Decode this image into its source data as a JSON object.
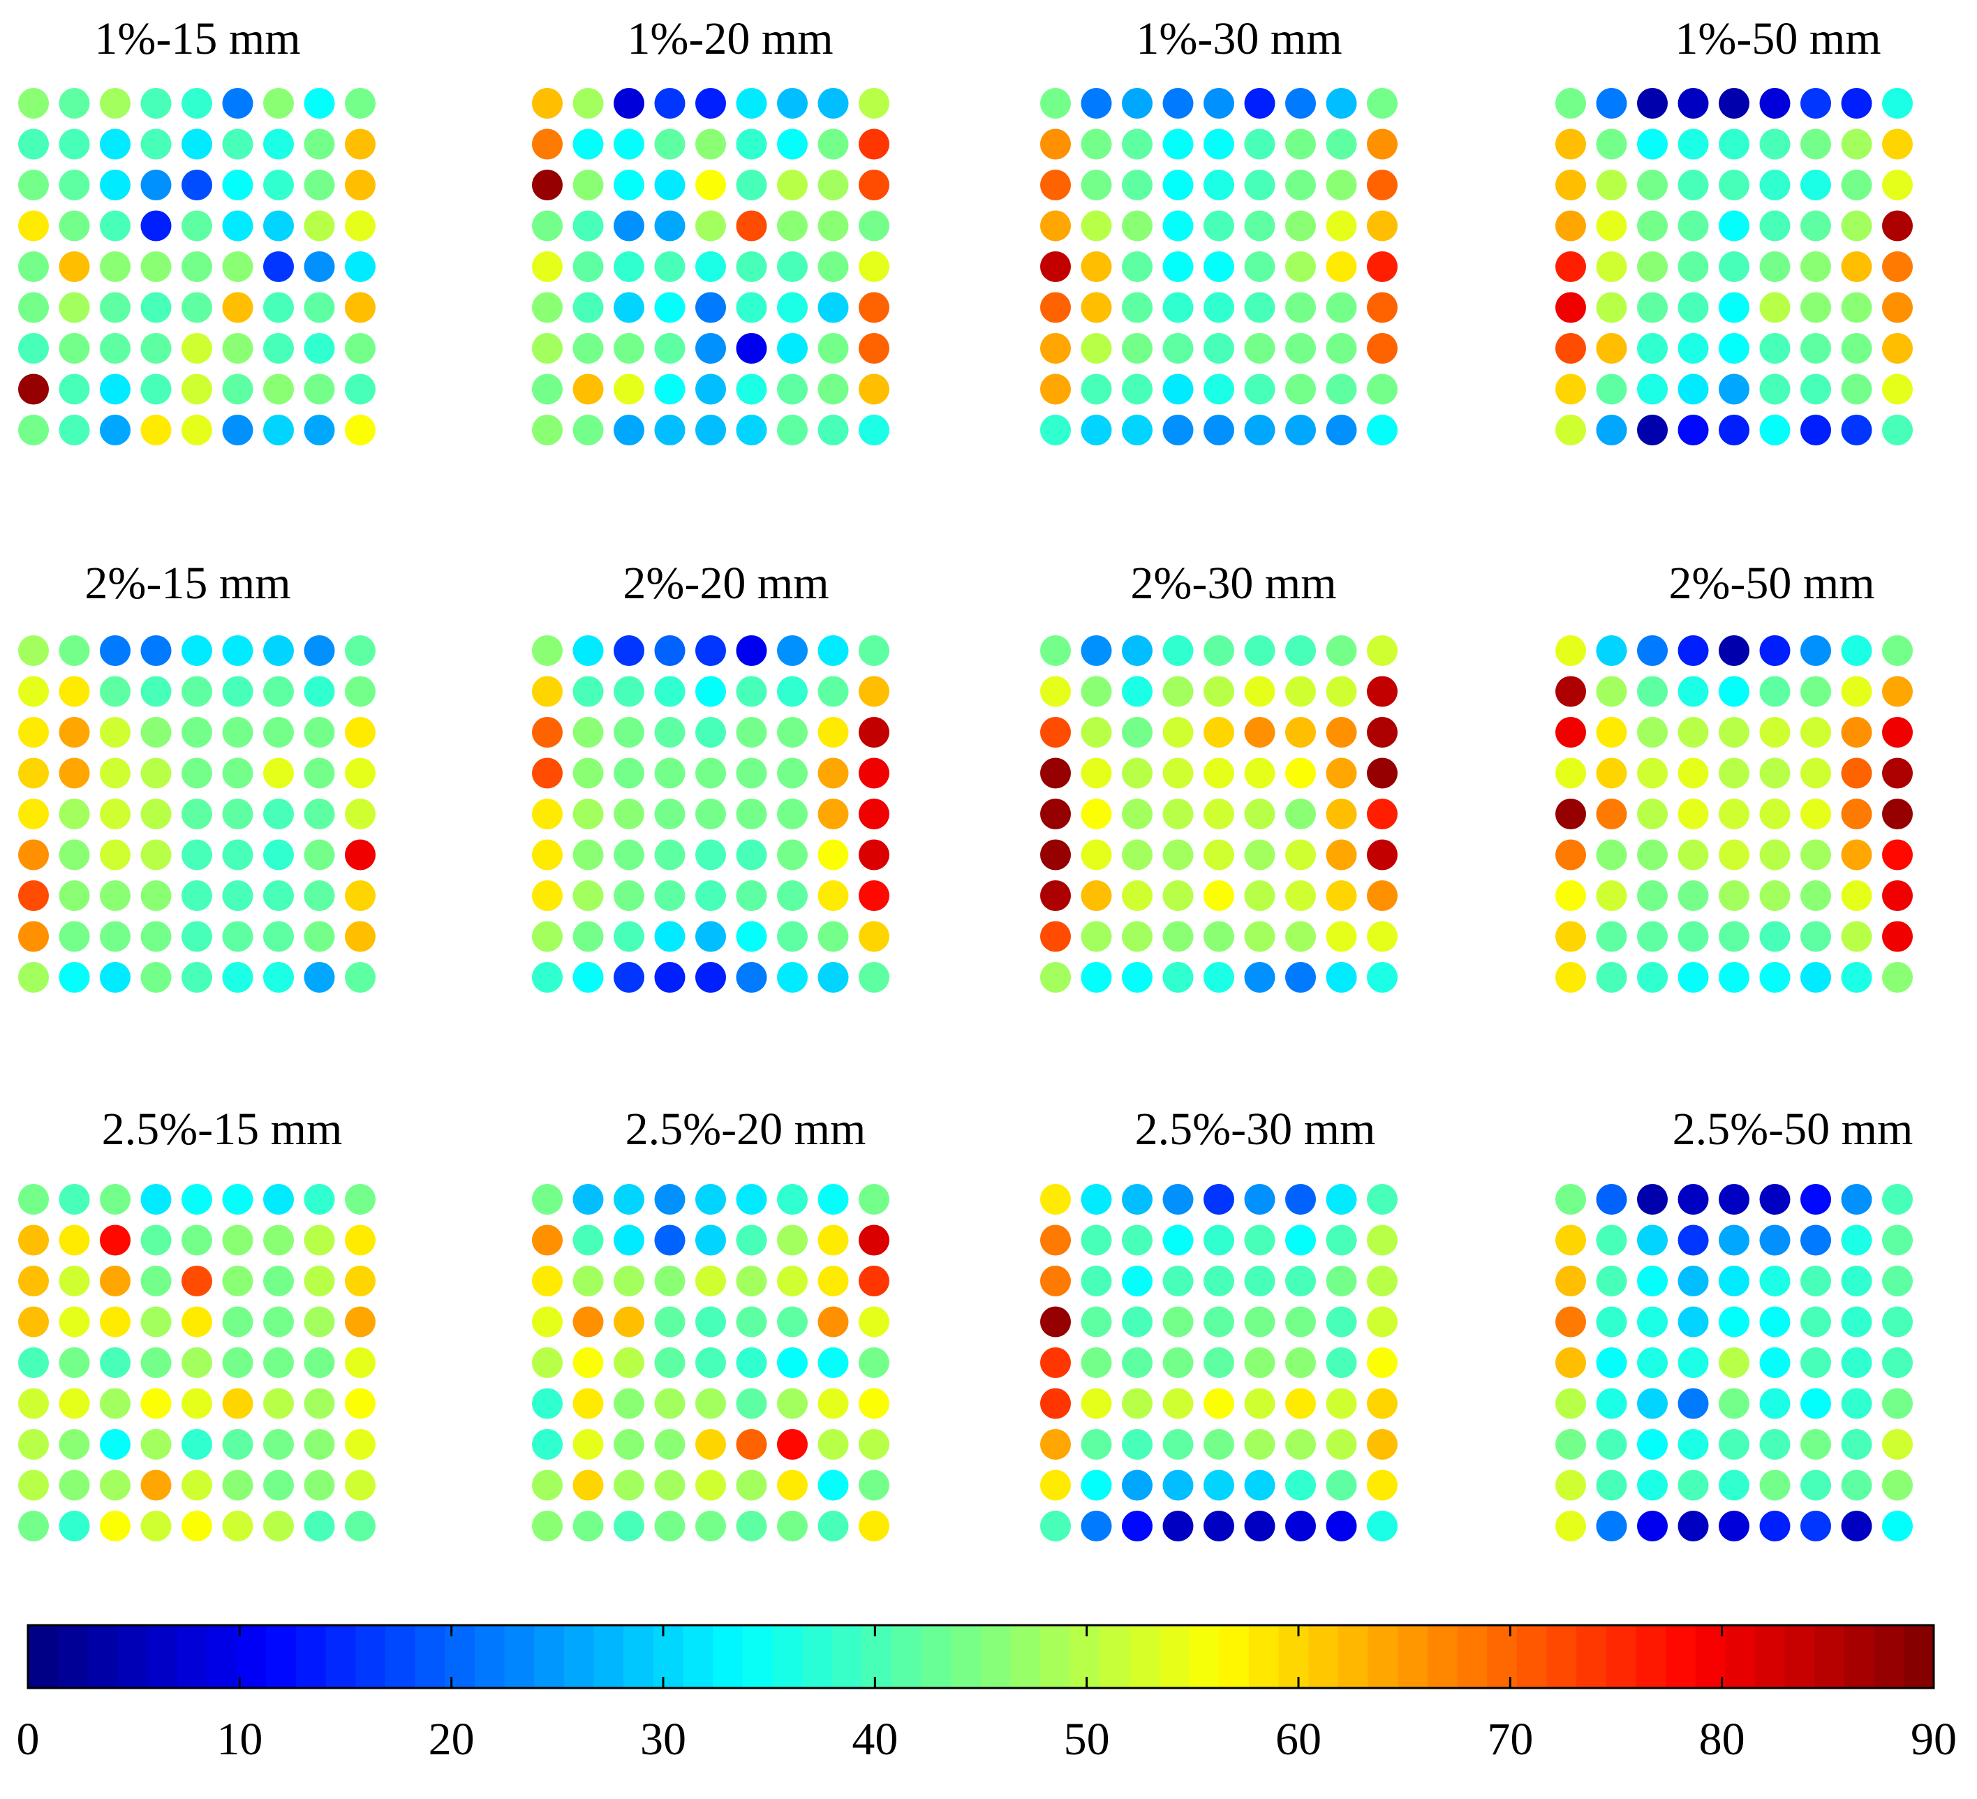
{
  "chart_data": {
    "type": "heatmap",
    "colormap": "jet",
    "colorbar": {
      "min": 0,
      "max": 90,
      "ticks": [
        "0",
        "10",
        "20",
        "30",
        "40",
        "50",
        "60",
        "70",
        "80",
        "90"
      ],
      "placement": "bottom"
    },
    "grid": "9x9 circles per panel",
    "panels": [
      {
        "title": "1%-15 mm",
        "values": [
          [
            46,
            42,
            48,
            40,
            38,
            22,
            46,
            34,
            44
          ],
          [
            40,
            40,
            32,
            40,
            32,
            40,
            36,
            44,
            62
          ],
          [
            44,
            42,
            32,
            24,
            18,
            34,
            38,
            44,
            62
          ],
          [
            58,
            44,
            40,
            14,
            42,
            32,
            30,
            50,
            54
          ],
          [
            44,
            62,
            46,
            46,
            44,
            46,
            16,
            24,
            32
          ],
          [
            44,
            48,
            42,
            40,
            42,
            62,
            40,
            42,
            62
          ],
          [
            40,
            44,
            42,
            42,
            52,
            46,
            40,
            38,
            44
          ],
          [
            88,
            40,
            32,
            40,
            52,
            42,
            46,
            44,
            40
          ],
          [
            44,
            40,
            26,
            58,
            54,
            24,
            30,
            26,
            56
          ]
        ]
      },
      {
        "title": "1%-20 mm",
        "values": [
          [
            62,
            48,
            8,
            16,
            14,
            32,
            28,
            28,
            50
          ],
          [
            68,
            34,
            34,
            42,
            46,
            38,
            34,
            44,
            74
          ],
          [
            88,
            46,
            34,
            32,
            56,
            40,
            50,
            48,
            72
          ],
          [
            44,
            40,
            24,
            26,
            48,
            72,
            46,
            46,
            44
          ],
          [
            54,
            42,
            38,
            40,
            36,
            40,
            40,
            44,
            54
          ],
          [
            46,
            40,
            30,
            34,
            22,
            38,
            36,
            30,
            70
          ],
          [
            48,
            44,
            44,
            42,
            24,
            10,
            32,
            44,
            70
          ],
          [
            44,
            62,
            54,
            34,
            28,
            36,
            42,
            44,
            62
          ],
          [
            46,
            44,
            26,
            28,
            28,
            30,
            42,
            40,
            36
          ]
        ]
      },
      {
        "title": "1%-30 mm",
        "values": [
          [
            44,
            22,
            26,
            22,
            24,
            14,
            22,
            28,
            44
          ],
          [
            66,
            44,
            42,
            34,
            34,
            40,
            44,
            42,
            66
          ],
          [
            70,
            44,
            42,
            34,
            36,
            40,
            44,
            46,
            70
          ],
          [
            64,
            50,
            46,
            34,
            40,
            42,
            46,
            54,
            62
          ],
          [
            84,
            62,
            42,
            34,
            34,
            42,
            48,
            58,
            76
          ],
          [
            70,
            62,
            42,
            38,
            38,
            40,
            44,
            44,
            70
          ],
          [
            64,
            50,
            44,
            42,
            40,
            44,
            44,
            44,
            70
          ],
          [
            64,
            40,
            40,
            32,
            36,
            40,
            44,
            42,
            44
          ],
          [
            38,
            30,
            30,
            24,
            24,
            26,
            26,
            24,
            34
          ]
        ]
      },
      {
        "title": "1%-50 mm",
        "values": [
          [
            44,
            22,
            4,
            6,
            4,
            8,
            16,
            14,
            36
          ],
          [
            62,
            44,
            34,
            36,
            38,
            40,
            44,
            48,
            60
          ],
          [
            62,
            50,
            44,
            40,
            40,
            38,
            36,
            44,
            54
          ],
          [
            64,
            54,
            44,
            42,
            34,
            40,
            42,
            48,
            86
          ],
          [
            76,
            52,
            46,
            42,
            40,
            44,
            46,
            62,
            68
          ],
          [
            80,
            50,
            42,
            40,
            34,
            50,
            46,
            46,
            66
          ],
          [
            72,
            62,
            38,
            36,
            34,
            40,
            42,
            44,
            62
          ],
          [
            60,
            42,
            36,
            32,
            26,
            40,
            40,
            44,
            54
          ],
          [
            52,
            26,
            4,
            12,
            14,
            34,
            14,
            16,
            40
          ]
        ]
      },
      {
        "title": "2%-15 mm",
        "values": [
          [
            48,
            44,
            22,
            22,
            32,
            32,
            30,
            24,
            42
          ],
          [
            54,
            58,
            42,
            40,
            42,
            40,
            42,
            38,
            44
          ],
          [
            58,
            64,
            52,
            46,
            44,
            44,
            44,
            44,
            58
          ],
          [
            60,
            64,
            52,
            50,
            44,
            44,
            54,
            44,
            54
          ],
          [
            58,
            48,
            52,
            50,
            42,
            42,
            40,
            42,
            52
          ],
          [
            66,
            46,
            52,
            50,
            40,
            40,
            38,
            44,
            80
          ],
          [
            72,
            46,
            46,
            46,
            40,
            40,
            40,
            42,
            60
          ],
          [
            66,
            44,
            44,
            44,
            40,
            42,
            42,
            44,
            62
          ],
          [
            48,
            34,
            32,
            44,
            40,
            36,
            36,
            26,
            42
          ]
        ]
      },
      {
        "title": "2%-20 mm",
        "values": [
          [
            46,
            32,
            16,
            20,
            16,
            10,
            24,
            32,
            42
          ],
          [
            60,
            40,
            40,
            38,
            34,
            40,
            38,
            42,
            62
          ],
          [
            70,
            46,
            44,
            42,
            40,
            44,
            44,
            58,
            84
          ],
          [
            72,
            46,
            44,
            44,
            44,
            44,
            44,
            64,
            80
          ],
          [
            58,
            48,
            46,
            44,
            44,
            44,
            44,
            64,
            80
          ],
          [
            58,
            46,
            44,
            42,
            40,
            40,
            44,
            56,
            82
          ],
          [
            58,
            48,
            44,
            42,
            40,
            42,
            42,
            58,
            78
          ],
          [
            48,
            44,
            40,
            32,
            28,
            34,
            42,
            44,
            60
          ],
          [
            38,
            34,
            16,
            14,
            14,
            22,
            32,
            30,
            42
          ]
        ]
      },
      {
        "title": "2%-30 mm",
        "values": [
          [
            44,
            24,
            28,
            38,
            42,
            40,
            40,
            44,
            52
          ],
          [
            54,
            46,
            36,
            48,
            50,
            54,
            52,
            52,
            84
          ],
          [
            72,
            50,
            44,
            52,
            60,
            66,
            62,
            66,
            86
          ],
          [
            88,
            54,
            50,
            52,
            54,
            54,
            56,
            64,
            88
          ],
          [
            88,
            56,
            48,
            50,
            52,
            50,
            46,
            62,
            76
          ],
          [
            88,
            54,
            48,
            48,
            52,
            48,
            52,
            64,
            84
          ],
          [
            86,
            62,
            52,
            50,
            56,
            50,
            52,
            60,
            66
          ],
          [
            72,
            48,
            48,
            46,
            46,
            48,
            48,
            54,
            54
          ],
          [
            48,
            34,
            34,
            38,
            36,
            24,
            22,
            32,
            36
          ]
        ]
      },
      {
        "title": "2%-50 mm",
        "values": [
          [
            54,
            30,
            22,
            14,
            4,
            14,
            24,
            36,
            44
          ],
          [
            86,
            48,
            42,
            36,
            34,
            42,
            44,
            54,
            64
          ],
          [
            80,
            58,
            48,
            50,
            50,
            52,
            52,
            66,
            80
          ],
          [
            54,
            60,
            52,
            54,
            50,
            50,
            52,
            70,
            86
          ],
          [
            88,
            68,
            50,
            54,
            52,
            52,
            54,
            68,
            88
          ],
          [
            68,
            46,
            46,
            50,
            52,
            50,
            48,
            64,
            78
          ],
          [
            56,
            52,
            44,
            44,
            48,
            48,
            46,
            54,
            80
          ],
          [
            60,
            42,
            42,
            42,
            42,
            40,
            42,
            50,
            80
          ],
          [
            58,
            40,
            38,
            34,
            34,
            34,
            32,
            36,
            46
          ]
        ]
      },
      {
        "title": "2.5%-15 mm",
        "values": [
          [
            44,
            40,
            44,
            32,
            34,
            34,
            32,
            38,
            44
          ],
          [
            62,
            58,
            78,
            42,
            44,
            46,
            46,
            50,
            58
          ],
          [
            62,
            52,
            64,
            44,
            72,
            46,
            44,
            50,
            60
          ],
          [
            62,
            54,
            58,
            48,
            58,
            44,
            44,
            48,
            64
          ],
          [
            40,
            44,
            40,
            44,
            48,
            44,
            44,
            44,
            54
          ],
          [
            52,
            54,
            48,
            56,
            54,
            60,
            50,
            48,
            56
          ],
          [
            50,
            46,
            34,
            48,
            38,
            42,
            44,
            46,
            54
          ],
          [
            50,
            46,
            48,
            64,
            52,
            46,
            44,
            46,
            52
          ],
          [
            44,
            38,
            56,
            52,
            56,
            52,
            50,
            40,
            42
          ]
        ]
      },
      {
        "title": "2.5%-20 mm",
        "values": [
          [
            44,
            28,
            30,
            24,
            30,
            32,
            38,
            34,
            44
          ],
          [
            66,
            40,
            32,
            20,
            30,
            40,
            48,
            58,
            82
          ],
          [
            58,
            48,
            48,
            46,
            52,
            48,
            52,
            58,
            74
          ],
          [
            54,
            66,
            62,
            42,
            40,
            42,
            42,
            66,
            54
          ],
          [
            50,
            56,
            50,
            42,
            40,
            38,
            34,
            34,
            44
          ],
          [
            38,
            58,
            46,
            48,
            48,
            42,
            48,
            54,
            56
          ],
          [
            38,
            54,
            46,
            46,
            60,
            70,
            78,
            50,
            50
          ],
          [
            48,
            60,
            48,
            48,
            52,
            48,
            58,
            34,
            44
          ],
          [
            46,
            44,
            40,
            44,
            44,
            42,
            44,
            40,
            58
          ]
        ]
      },
      {
        "title": "2.5%-30 mm",
        "values": [
          [
            58,
            32,
            28,
            24,
            16,
            24,
            20,
            32,
            40
          ],
          [
            68,
            40,
            40,
            34,
            38,
            40,
            34,
            40,
            50
          ],
          [
            68,
            40,
            34,
            40,
            40,
            40,
            40,
            44,
            50
          ],
          [
            88,
            42,
            40,
            44,
            42,
            44,
            44,
            40,
            52
          ],
          [
            74,
            44,
            42,
            44,
            42,
            46,
            46,
            40,
            56
          ],
          [
            74,
            54,
            50,
            52,
            56,
            52,
            58,
            52,
            60
          ],
          [
            64,
            42,
            40,
            42,
            44,
            48,
            48,
            50,
            62
          ],
          [
            58,
            34,
            26,
            28,
            30,
            30,
            38,
            42,
            58
          ],
          [
            40,
            22,
            12,
            6,
            6,
            6,
            8,
            10,
            36
          ]
        ]
      },
      {
        "title": "2.5%-50 mm",
        "values": [
          [
            44,
            20,
            4,
            6,
            6,
            6,
            12,
            24,
            40
          ],
          [
            60,
            40,
            30,
            16,
            26,
            24,
            22,
            36,
            42
          ],
          [
            62,
            40,
            34,
            28,
            32,
            36,
            40,
            38,
            42
          ],
          [
            68,
            38,
            36,
            30,
            34,
            34,
            40,
            38,
            40
          ],
          [
            62,
            34,
            36,
            36,
            50,
            34,
            40,
            38,
            40
          ],
          [
            50,
            36,
            30,
            22,
            44,
            36,
            34,
            38,
            44
          ],
          [
            44,
            40,
            34,
            36,
            40,
            40,
            44,
            40,
            52
          ],
          [
            52,
            40,
            36,
            40,
            38,
            44,
            40,
            42,
            46
          ],
          [
            54,
            22,
            10,
            6,
            8,
            14,
            16,
            6,
            34
          ]
        ]
      }
    ]
  }
}
